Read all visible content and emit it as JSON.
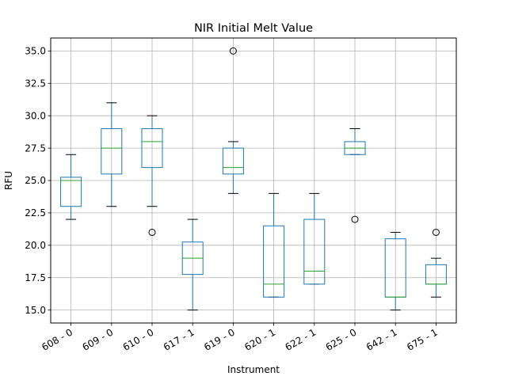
{
  "chart_data": {
    "type": "box",
    "title": "NIR Initial Melt Value",
    "xlabel": "Instrument",
    "ylabel": "RFU",
    "ylim": [
      14.0,
      36.0
    ],
    "yticks": [
      "15.0",
      "17.5",
      "20.0",
      "22.5",
      "25.0",
      "27.5",
      "30.0",
      "32.5",
      "35.0"
    ],
    "grid": true,
    "colors": {
      "box": "#1f77b4",
      "median": "#2ca02c",
      "whisker_cap": "#000000",
      "grid": "#b0b0b0"
    },
    "categories": [
      "608 - 0",
      "609 - 0",
      "610 - 0",
      "617 - 1",
      "619 - 0",
      "620 - 1",
      "622 - 1",
      "625 - 0",
      "642 - 1",
      "675 - 1"
    ],
    "boxes": [
      {
        "whislo": 22.0,
        "q1": 23.0,
        "med": 25.0,
        "q3": 25.25,
        "whishi": 27.0,
        "fliers": []
      },
      {
        "whislo": 23.0,
        "q1": 25.5,
        "med": 27.5,
        "q3": 29.0,
        "whishi": 31.0,
        "fliers": []
      },
      {
        "whislo": 23.0,
        "q1": 26.0,
        "med": 28.0,
        "q3": 29.0,
        "whishi": 30.0,
        "fliers": [
          21.0
        ]
      },
      {
        "whislo": 15.0,
        "q1": 17.75,
        "med": 19.0,
        "q3": 20.25,
        "whishi": 22.0,
        "fliers": []
      },
      {
        "whislo": 24.0,
        "q1": 25.5,
        "med": 26.0,
        "q3": 27.5,
        "whishi": 28.0,
        "fliers": [
          35.0
        ]
      },
      {
        "whislo": 16.0,
        "q1": 16.0,
        "med": 17.0,
        "q3": 21.5,
        "whishi": 24.0,
        "fliers": []
      },
      {
        "whislo": 17.0,
        "q1": 17.0,
        "med": 18.0,
        "q3": 22.0,
        "whishi": 24.0,
        "fliers": []
      },
      {
        "whislo": 27.0,
        "q1": 27.0,
        "med": 27.5,
        "q3": 28.0,
        "whishi": 29.0,
        "fliers": [
          22.0
        ]
      },
      {
        "whislo": 15.0,
        "q1": 16.0,
        "med": 16.0,
        "q3": 20.5,
        "whishi": 21.0,
        "fliers": []
      },
      {
        "whislo": 16.0,
        "q1": 17.0,
        "med": 17.0,
        "q3": 18.5,
        "whishi": 19.0,
        "fliers": [
          21.0
        ]
      }
    ]
  }
}
